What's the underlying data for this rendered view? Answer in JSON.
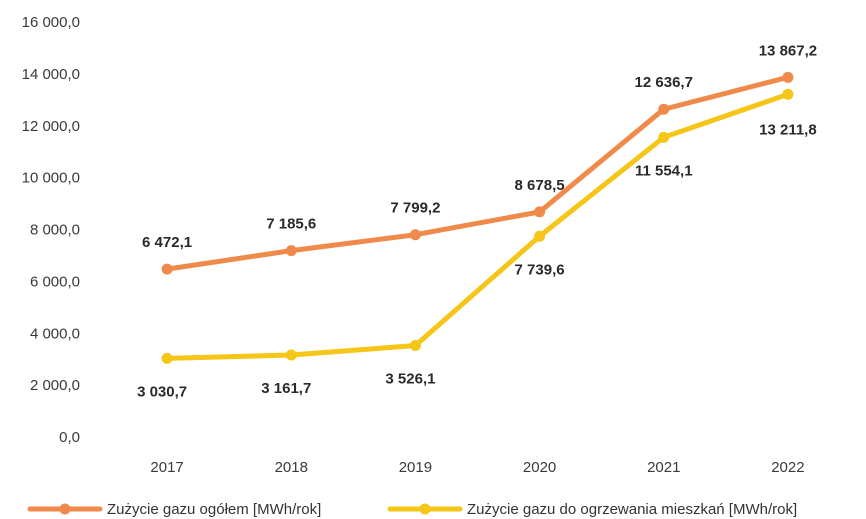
{
  "chart_data": {
    "type": "line",
    "categories": [
      "2017",
      "2018",
      "2019",
      "2020",
      "2021",
      "2022"
    ],
    "ylim": [
      0,
      16000
    ],
    "yticks": [
      0,
      2000,
      4000,
      6000,
      8000,
      10000,
      12000,
      14000,
      16000
    ],
    "ytick_labels": [
      "0,0",
      "2 000,0",
      "4 000,0",
      "6 000,0",
      "8 000,0",
      "10 000,0",
      "12 000,0",
      "14 000,0",
      "16 000,0"
    ],
    "grid": false,
    "legend_position": "bottom",
    "series": [
      {
        "name": "Zużycie gazu ogółem [MWh/rok]",
        "color": "#f08a4b",
        "values": [
          6472.1,
          7185.6,
          7799.2,
          8678.5,
          12636.7,
          13867.2
        ],
        "labels": [
          "6 472,1",
          "7 185,6",
          "7 799,2",
          "8 678,5",
          "12 636,7",
          "13 867,2"
        ]
      },
      {
        "name": "Zużycie gazu do ogrzewania mieszkań [MWh/rok]",
        "color": "#f5c518",
        "values": [
          3030.7,
          3161.7,
          3526.1,
          7739.6,
          11554.1,
          13211.8
        ],
        "labels": [
          "3 030,7",
          "3 161,7",
          "3 526,1",
          "7 739,6",
          "11 554,1",
          "13 211,8"
        ]
      }
    ]
  }
}
